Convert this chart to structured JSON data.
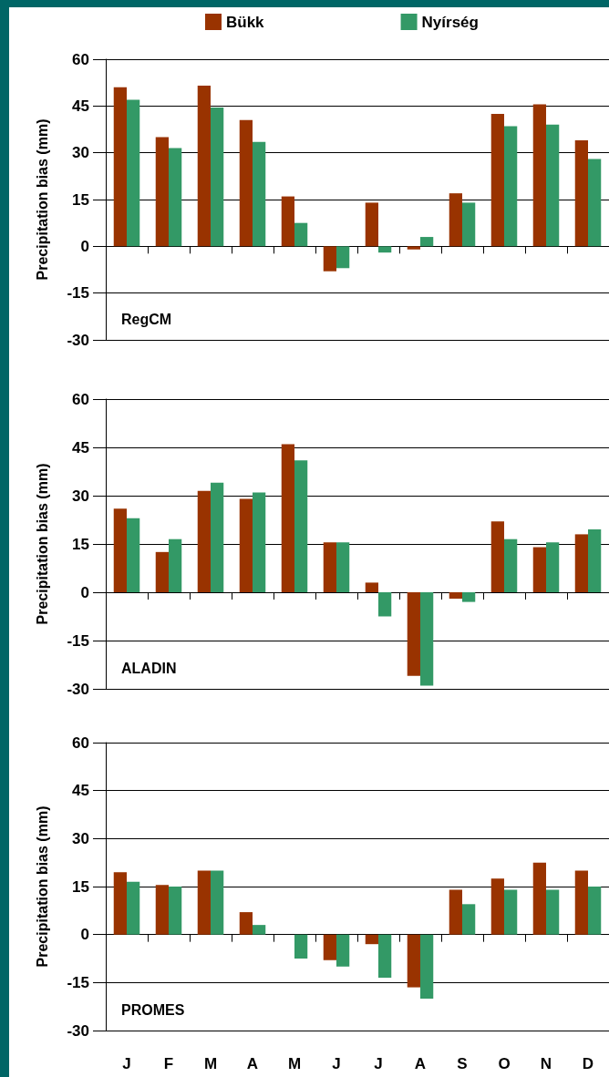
{
  "chart_data": [
    {
      "type": "bar",
      "title": "RegCM",
      "ylabel": "Precipitation bias (mm)",
      "categories": [
        null,
        null,
        null,
        null,
        null,
        null,
        null,
        null,
        null,
        null,
        null,
        null
      ],
      "series": [
        {
          "name": "Bükk",
          "color": "#993300",
          "values": [
            51,
            35,
            51.5,
            40.5,
            16,
            -8,
            14,
            -1,
            17,
            42.5,
            45.5,
            34
          ]
        },
        {
          "name": "Nyírség",
          "color": "#339966",
          "values": [
            47,
            31.5,
            44.5,
            33.5,
            7.5,
            -7,
            -2,
            3,
            14,
            38.5,
            39,
            28
          ]
        }
      ],
      "ylim": [
        -30,
        60
      ],
      "yticks": [
        -30,
        -15,
        0,
        15,
        30,
        45,
        60
      ],
      "grid": "y",
      "legend": "top",
      "tick_labels": "y"
    },
    {
      "type": "bar",
      "title": "ALADIN",
      "ylabel": "Precipitation bias (mm)",
      "categories": [
        null,
        null,
        null,
        null,
        null,
        null,
        null,
        null,
        null,
        null,
        null,
        null
      ],
      "series": [
        {
          "color": "#993300",
          "values": [
            26,
            12.5,
            31.5,
            29,
            46,
            15.5,
            3,
            -26,
            -2,
            22,
            14,
            18
          ]
        },
        {
          "color": "#339966",
          "values": [
            23,
            16.5,
            34,
            31,
            41,
            15.5,
            -7.5,
            -29,
            -3,
            16.5,
            15.5,
            19.5
          ]
        }
      ],
      "ylim": [
        -30,
        60
      ],
      "yticks": [
        -30,
        -15,
        0,
        15,
        30,
        45,
        60
      ],
      "grid": "y",
      "tick_labels": "y"
    },
    {
      "type": "bar",
      "title": "PROMES",
      "ylabel": "Precipitation bias (mm)",
      "categories": [
        "J",
        "F",
        "M",
        "A",
        "M",
        "J",
        "J",
        "A",
        "S",
        "O",
        "N",
        "D"
      ],
      "series": [
        {
          "color": "#993300",
          "values": [
            19.5,
            15.5,
            20,
            7,
            0,
            -8,
            -3,
            -16.5,
            14,
            17.5,
            22.5,
            20
          ]
        },
        {
          "color": "#339966",
          "values": [
            16.5,
            15,
            20,
            3,
            -7.5,
            -10,
            -13.5,
            -20,
            9.5,
            14,
            14,
            15
          ]
        }
      ],
      "ylim": [
        -30,
        60
      ],
      "yticks": [
        -30,
        -15,
        0,
        15,
        30,
        45,
        60
      ],
      "grid": "y"
    }
  ]
}
